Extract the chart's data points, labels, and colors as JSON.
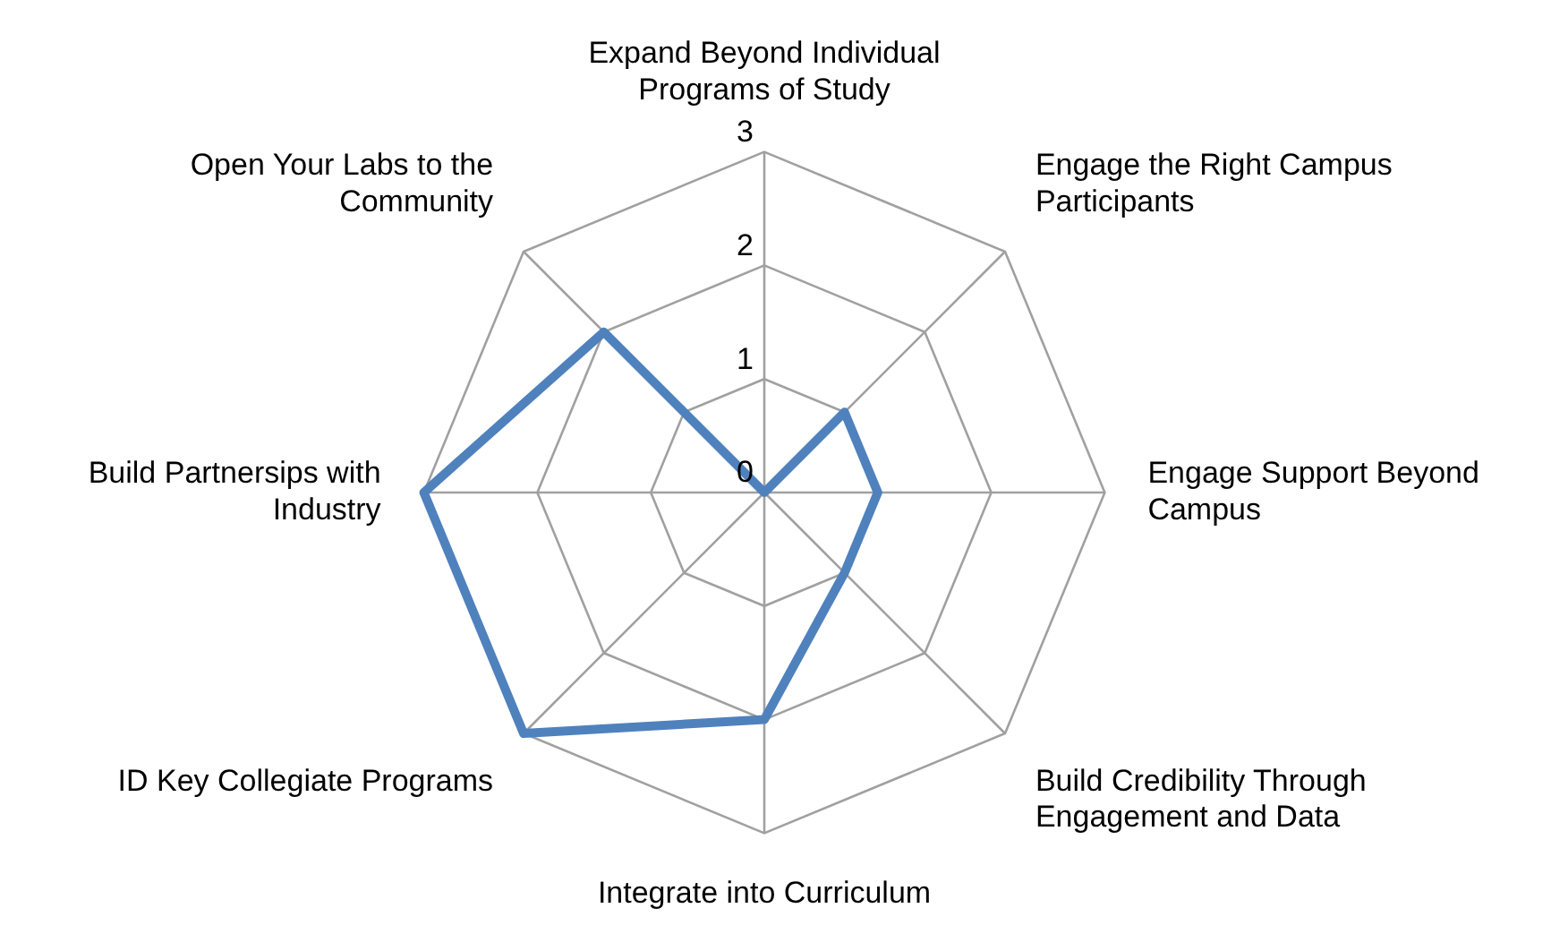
{
  "chart_data": {
    "type": "radar",
    "categories": [
      "Expand Beyond Individual Programs of Study",
      "Engage the Right Campus Participants",
      "Engage Support Beyond Campus",
      "Build Credibility Through Engagement and Data",
      "Integrate into Curriculum",
      "ID Key Collegiate Programs",
      "Build Partnersips with Industry",
      "Open Your Labs to the Community"
    ],
    "series": [
      {
        "color": "#4f81bd",
        "values": [
          0,
          1,
          1,
          1,
          2,
          3,
          3,
          2
        ]
      }
    ],
    "ylim": [
      0,
      3
    ],
    "yticks": [
      0,
      1,
      2,
      3
    ],
    "grid": true,
    "legend": false,
    "marker": "none",
    "line_style": "solid"
  }
}
